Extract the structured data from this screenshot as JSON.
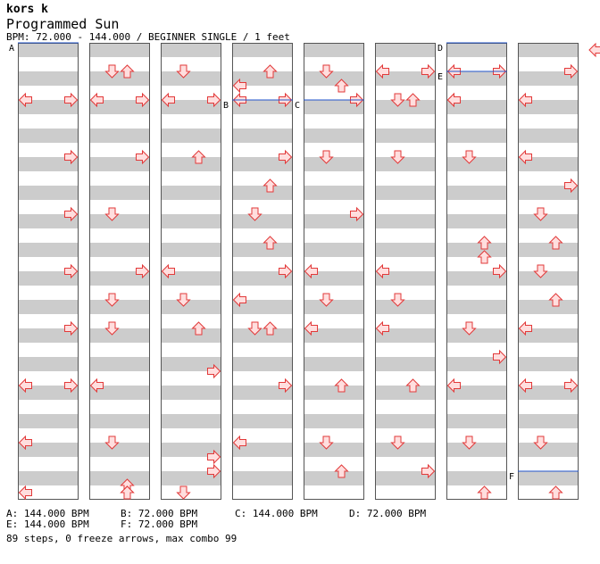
{
  "header": {
    "artist": "kors k",
    "title": "Programmed Sun",
    "info": "BPM: 72.000 - 144.000 / BEGINNER SINGLE / 1 feet"
  },
  "chart_data": {
    "type": "step-chart",
    "columns": 8,
    "measures_per_column": 8,
    "rows_per_measure": 4,
    "lanes": [
      "left",
      "down",
      "up",
      "right"
    ],
    "arrows": [
      [
        0,
        0,
        0,
        "left"
      ],
      [
        0,
        0,
        0,
        "right"
      ],
      [
        0,
        1,
        0,
        "right"
      ],
      [
        0,
        2,
        0,
        "right"
      ],
      [
        0,
        3,
        0,
        "right"
      ],
      [
        0,
        4,
        0,
        "right"
      ],
      [
        0,
        5,
        0,
        "left"
      ],
      [
        0,
        5,
        0,
        "right"
      ],
      [
        0,
        6,
        0,
        "left"
      ],
      [
        0,
        7,
        0,
        "left"
      ],
      [
        1,
        -1,
        2,
        "down"
      ],
      [
        1,
        -1,
        2,
        "up"
      ],
      [
        1,
        0,
        0,
        "left"
      ],
      [
        1,
        0,
        0,
        "right"
      ],
      [
        1,
        1,
        0,
        "right"
      ],
      [
        1,
        2,
        0,
        "down"
      ],
      [
        1,
        3,
        0,
        "right"
      ],
      [
        1,
        3,
        2,
        "down"
      ],
      [
        1,
        4,
        0,
        "down"
      ],
      [
        1,
        5,
        0,
        "left"
      ],
      [
        1,
        6,
        0,
        "down"
      ],
      [
        1,
        6,
        3,
        "up"
      ],
      [
        1,
        7,
        0,
        "up"
      ],
      [
        1,
        7,
        1,
        "up"
      ],
      [
        2,
        -1,
        2,
        "down"
      ],
      [
        2,
        0,
        0,
        "left"
      ],
      [
        2,
        0,
        0,
        "right"
      ],
      [
        2,
        1,
        0,
        "up"
      ],
      [
        2,
        3,
        0,
        "left"
      ],
      [
        2,
        3,
        2,
        "down"
      ],
      [
        2,
        4,
        0,
        "up"
      ],
      [
        2,
        4,
        3,
        "right"
      ],
      [
        2,
        6,
        1,
        "right"
      ],
      [
        2,
        6,
        2,
        "right"
      ],
      [
        2,
        7,
        0,
        "down"
      ],
      [
        3,
        -1,
        2,
        "up"
      ],
      [
        3,
        -1,
        3,
        "left"
      ],
      [
        3,
        0,
        0,
        "left"
      ],
      [
        3,
        0,
        0,
        "right"
      ],
      [
        3,
        1,
        0,
        "right"
      ],
      [
        3,
        1,
        2,
        "up"
      ],
      [
        3,
        2,
        0,
        "down"
      ],
      [
        3,
        2,
        2,
        "up"
      ],
      [
        3,
        3,
        0,
        "right"
      ],
      [
        3,
        3,
        2,
        "left"
      ],
      [
        3,
        4,
        0,
        "down"
      ],
      [
        3,
        4,
        0,
        "up"
      ],
      [
        3,
        5,
        0,
        "right"
      ],
      [
        3,
        6,
        0,
        "left"
      ],
      [
        4,
        -1,
        2,
        "down"
      ],
      [
        4,
        -1,
        3,
        "up"
      ],
      [
        4,
        0,
        0,
        "right"
      ],
      [
        4,
        1,
        0,
        "down"
      ],
      [
        4,
        2,
        0,
        "right"
      ],
      [
        4,
        3,
        0,
        "left"
      ],
      [
        4,
        3,
        2,
        "down"
      ],
      [
        4,
        4,
        0,
        "left"
      ],
      [
        4,
        5,
        0,
        "up"
      ],
      [
        4,
        6,
        0,
        "down"
      ],
      [
        4,
        6,
        2,
        "up"
      ],
      [
        5,
        -1,
        2,
        "left"
      ],
      [
        5,
        -1,
        2,
        "right"
      ],
      [
        5,
        0,
        0,
        "down"
      ],
      [
        5,
        0,
        0,
        "up"
      ],
      [
        5,
        1,
        0,
        "down"
      ],
      [
        5,
        3,
        0,
        "left"
      ],
      [
        5,
        3,
        2,
        "down"
      ],
      [
        5,
        4,
        0,
        "left"
      ],
      [
        5,
        5,
        0,
        "up"
      ],
      [
        5,
        6,
        0,
        "down"
      ],
      [
        5,
        6,
        2,
        "right"
      ],
      [
        6,
        -1,
        2,
        "left"
      ],
      [
        6,
        -1,
        2,
        "right"
      ],
      [
        6,
        0,
        0,
        "left"
      ],
      [
        6,
        0,
        0,
        "left"
      ],
      [
        6,
        1,
        0,
        "down"
      ],
      [
        6,
        2,
        2,
        "up"
      ],
      [
        6,
        2,
        3,
        "up"
      ],
      [
        6,
        3,
        0,
        "right"
      ],
      [
        6,
        4,
        0,
        "down"
      ],
      [
        6,
        4,
        2,
        "right"
      ],
      [
        6,
        5,
        0,
        "left"
      ],
      [
        6,
        6,
        0,
        "down"
      ],
      [
        6,
        7,
        0,
        "up"
      ],
      [
        7,
        -1,
        2,
        "right"
      ],
      [
        7,
        0,
        0,
        "left"
      ],
      [
        7,
        1,
        0,
        "left"
      ],
      [
        7,
        1,
        2,
        "right"
      ],
      [
        7,
        2,
        0,
        "down"
      ],
      [
        7,
        2,
        2,
        "up"
      ],
      [
        7,
        3,
        0,
        "down"
      ],
      [
        7,
        3,
        2,
        "up"
      ],
      [
        7,
        4,
        0,
        "left"
      ],
      [
        7,
        5,
        0,
        "right"
      ],
      [
        7,
        5,
        0,
        "left"
      ],
      [
        7,
        6,
        0,
        "down"
      ],
      [
        7,
        7,
        0,
        "up"
      ]
    ],
    "bpm_markers": [
      {
        "label": "A",
        "col": 0,
        "measure": 0,
        "row": 0
      },
      {
        "label": "B",
        "col": 3,
        "measure": 2,
        "row": 0
      },
      {
        "label": "C",
        "col": 4,
        "measure": 2,
        "row": 0
      },
      {
        "label": "D",
        "col": 6,
        "measure": 0,
        "row": 0
      },
      {
        "label": "E",
        "col": 6,
        "measure": 1,
        "row": 0
      },
      {
        "label": "F",
        "col": 7,
        "measure": 15,
        "row": 0
      }
    ],
    "edge_arrow": "left"
  },
  "bpm_list": [
    {
      "text": "A: 144.000 BPM"
    },
    {
      "text": "B: 72.000 BPM"
    },
    {
      "text": "C: 144.000 BPM"
    },
    {
      "text": "D: 72.000 BPM"
    },
    {
      "text": "E: 144.000 BPM"
    },
    {
      "text": "F: 72.000 BPM"
    }
  ],
  "stats": "89 steps, 0 freeze arrows, max combo 99"
}
